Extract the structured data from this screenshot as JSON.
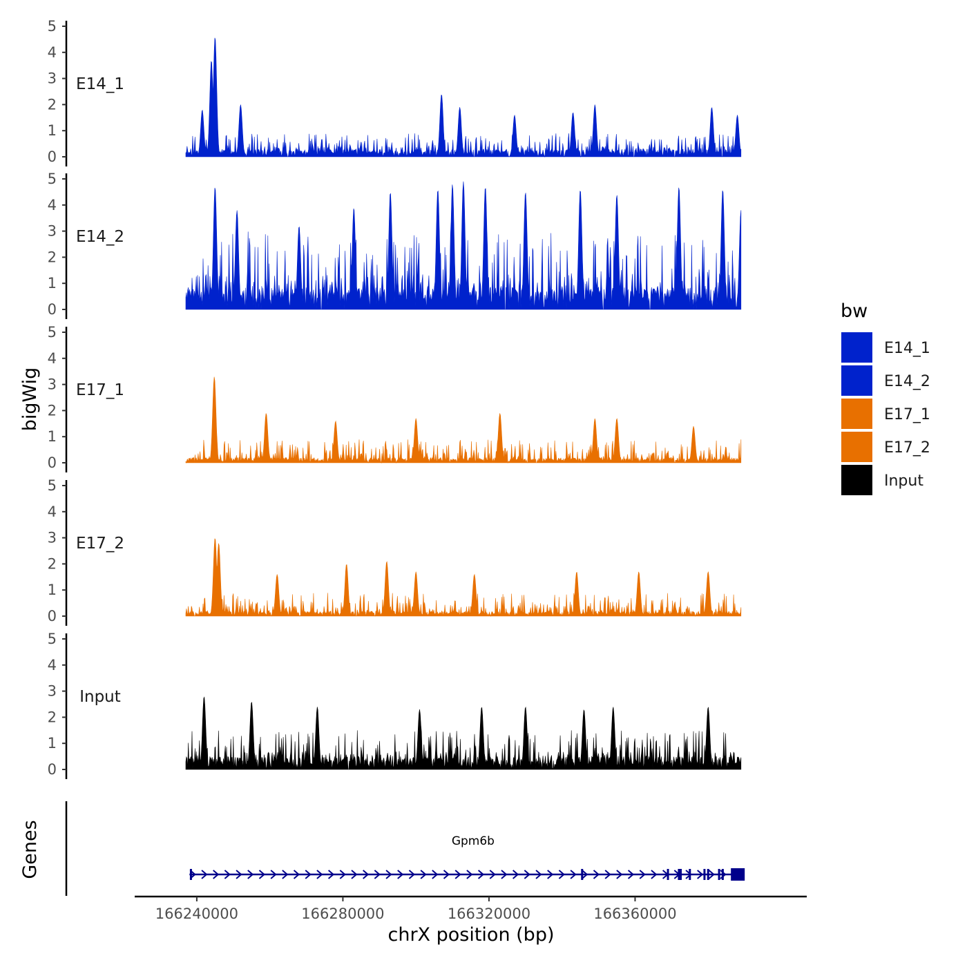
{
  "chart_data": {
    "type": "area",
    "title": "",
    "ylabel": "bigWig",
    "xlabel": "chrX position (bp)",
    "genes_panel_label": "Genes",
    "ylim": [
      0,
      5
    ],
    "yticks": [
      0,
      1,
      2,
      3,
      4,
      5
    ],
    "xlim": [
      166223000,
      166407000
    ],
    "xticks": [
      166240000,
      166280000,
      166320000,
      166360000
    ],
    "data_range": [
      166237000,
      166389000
    ],
    "legend": {
      "title": "bw",
      "position": "right",
      "entries": [
        {
          "label": "E14_1",
          "color": "#0022cc"
        },
        {
          "label": "E14_2",
          "color": "#0022cc"
        },
        {
          "label": "E17_1",
          "color": "#e87000"
        },
        {
          "label": "E17_2",
          "color": "#e87000"
        },
        {
          "label": "Input",
          "color": "#000000"
        }
      ]
    },
    "series": [
      {
        "name": "E14_1",
        "color": "#0022cc",
        "base_level": 0.3,
        "noise_max": 0.9,
        "seed": 11,
        "peaks": [
          {
            "x": 166241500,
            "y": 1.8
          },
          {
            "x": 166244000,
            "y": 3.7
          },
          {
            "x": 166245000,
            "y": 4.6
          },
          {
            "x": 166252000,
            "y": 2.0
          },
          {
            "x": 166307000,
            "y": 2.4
          },
          {
            "x": 166312000,
            "y": 1.9
          },
          {
            "x": 166327000,
            "y": 1.6
          },
          {
            "x": 166343000,
            "y": 1.7
          },
          {
            "x": 166349000,
            "y": 2.0
          },
          {
            "x": 166381000,
            "y": 1.9
          },
          {
            "x": 166388000,
            "y": 1.6
          }
        ]
      },
      {
        "name": "E14_2",
        "color": "#0022cc",
        "base_level": 0.9,
        "noise_max": 3.0,
        "seed": 23,
        "peaks": [
          {
            "x": 166245000,
            "y": 4.7
          },
          {
            "x": 166251000,
            "y": 3.8
          },
          {
            "x": 166268000,
            "y": 3.2
          },
          {
            "x": 166283000,
            "y": 3.9
          },
          {
            "x": 166293000,
            "y": 4.5
          },
          {
            "x": 166306000,
            "y": 4.6
          },
          {
            "x": 166310000,
            "y": 4.8
          },
          {
            "x": 166313000,
            "y": 4.9
          },
          {
            "x": 166319000,
            "y": 4.7
          },
          {
            "x": 166330000,
            "y": 4.5
          },
          {
            "x": 166345000,
            "y": 4.6
          },
          {
            "x": 166355000,
            "y": 4.4
          },
          {
            "x": 166372000,
            "y": 4.7
          },
          {
            "x": 166384000,
            "y": 4.6
          },
          {
            "x": 166389000,
            "y": 3.8
          }
        ]
      },
      {
        "name": "E17_1",
        "color": "#e87000",
        "base_level": 0.2,
        "noise_max": 0.9,
        "seed": 37,
        "peaks": [
          {
            "x": 166244800,
            "y": 3.3
          },
          {
            "x": 166259000,
            "y": 1.9
          },
          {
            "x": 166278000,
            "y": 1.6
          },
          {
            "x": 166300000,
            "y": 1.7
          },
          {
            "x": 166323000,
            "y": 1.9
          },
          {
            "x": 166349000,
            "y": 1.7
          },
          {
            "x": 166355000,
            "y": 1.7
          },
          {
            "x": 166376000,
            "y": 1.4
          }
        ]
      },
      {
        "name": "E17_2",
        "color": "#e87000",
        "base_level": 0.2,
        "noise_max": 0.9,
        "seed": 53,
        "peaks": [
          {
            "x": 166245000,
            "y": 3.0
          },
          {
            "x": 166246000,
            "y": 2.8
          },
          {
            "x": 166262000,
            "y": 1.6
          },
          {
            "x": 166281000,
            "y": 2.0
          },
          {
            "x": 166292000,
            "y": 2.1
          },
          {
            "x": 166300000,
            "y": 1.7
          },
          {
            "x": 166316000,
            "y": 1.6
          },
          {
            "x": 166344000,
            "y": 1.7
          },
          {
            "x": 166361000,
            "y": 1.7
          },
          {
            "x": 166380000,
            "y": 1.7
          }
        ]
      },
      {
        "name": "Input",
        "color": "#000000",
        "base_level": 0.5,
        "noise_max": 1.5,
        "seed": 71,
        "peaks": [
          {
            "x": 166242000,
            "y": 2.8
          },
          {
            "x": 166255000,
            "y": 2.6
          },
          {
            "x": 166273000,
            "y": 2.4
          },
          {
            "x": 166301000,
            "y": 2.3
          },
          {
            "x": 166318000,
            "y": 2.4
          },
          {
            "x": 166330000,
            "y": 2.4
          },
          {
            "x": 166346000,
            "y": 2.3
          },
          {
            "x": 166354000,
            "y": 2.4
          },
          {
            "x": 166380000,
            "y": 2.4
          }
        ]
      }
    ],
    "gene": {
      "name": "Gpm6b",
      "strand": "+",
      "color": "#00008b",
      "start": 166238000,
      "end": 166389500,
      "exons": [
        166238400,
        166345500,
        166369000,
        166372000,
        166372500,
        166375000,
        166379000,
        166380000,
        166383000,
        166384000,
        166388500
      ]
    }
  }
}
